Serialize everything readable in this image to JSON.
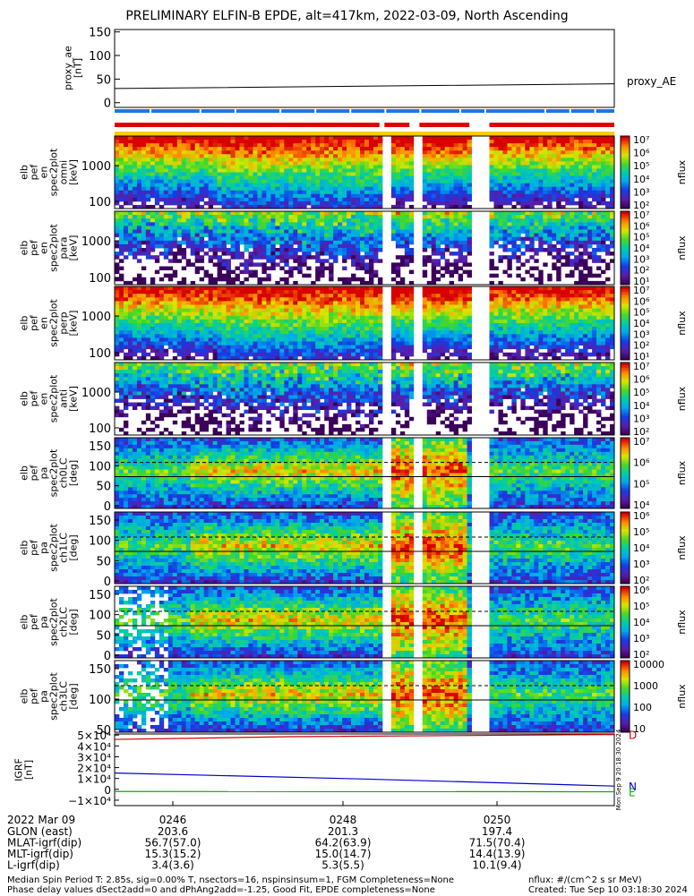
{
  "title": "PRELIMINARY ELFIN-B EPDE, alt=417km, 2022-03-09, North Ascending",
  "chart_data": [
    {
      "type": "line",
      "ylabel": "proxy_ae\n[nT]",
      "legend": "proxy_AE",
      "yticks": [
        "0",
        "50",
        "100",
        "150"
      ],
      "ylim": [
        -10,
        155
      ],
      "series": [
        {
          "name": "proxy_AE",
          "x": [
            0,
            0.5,
            1
          ],
          "values": [
            30,
            35,
            40
          ]
        }
      ]
    },
    {
      "type": "bar",
      "name": "status-bars",
      "rows": [
        {
          "color": "#1f77e0",
          "segments": [
            [
              0.0,
              1.0
            ]
          ],
          "gaps": [
            0.07,
            0.17,
            0.24,
            0.33,
            0.4,
            0.47,
            0.54,
            0.61,
            0.69,
            0.74,
            0.86,
            0.91,
            0.96
          ]
        },
        {
          "color": "#e00000",
          "segments": [
            [
              0.0,
              0.53
            ],
            [
              0.54,
              0.59
            ],
            [
              0.61,
              0.71
            ],
            [
              0.75,
              1.0
            ]
          ]
        },
        {
          "color": "#ffcc00",
          "segments": [
            [
              0.0,
              1.0
            ]
          ]
        }
      ]
    },
    {
      "type": "heatmap",
      "ylabel": "elb\npef\nen\nspec2plot\nomni\n[keV]",
      "yticks": [
        "100",
        "1000"
      ],
      "colorbar_label": "nflux",
      "colorbar_ticks": [
        "10²",
        "10³",
        "10⁴",
        "10⁵",
        "10⁶",
        "10⁷"
      ]
    },
    {
      "type": "heatmap",
      "ylabel": "elb\npef\nen\nspec2plot\npara\n[keV]",
      "yticks": [
        "100",
        "1000"
      ],
      "colorbar_label": "nflux",
      "colorbar_ticks": [
        "10¹",
        "10²",
        "10³",
        "10⁴",
        "10⁵",
        "10⁶",
        "10⁷"
      ]
    },
    {
      "type": "heatmap",
      "ylabel": "elb\npef\nen\nspec2plot\nperp\n[keV]",
      "yticks": [
        "100",
        "1000"
      ],
      "colorbar_label": "nflux",
      "colorbar_ticks": [
        "10¹",
        "10²",
        "10³",
        "10⁴",
        "10⁵",
        "10⁶",
        "10⁷"
      ]
    },
    {
      "type": "heatmap",
      "ylabel": "elb\npef\nen\nspec2plot\nanti\n[keV]",
      "yticks": [
        "100",
        "1000"
      ],
      "colorbar_label": "nflux",
      "colorbar_ticks": [
        "10²",
        "10³",
        "10⁴",
        "10⁵",
        "10⁶",
        "10⁷"
      ]
    },
    {
      "type": "heatmap",
      "ylabel": "elb\npef\npa\nspec2plot\nch0LC\n[deg]",
      "yticks": [
        "0",
        "50",
        "100",
        "150"
      ],
      "colorbar_label": "nflux",
      "colorbar_ticks": [
        "10⁴",
        "10⁵",
        "10⁶",
        "10⁷"
      ]
    },
    {
      "type": "heatmap",
      "ylabel": "elb\npef\npa\nspec2plot\nch1LC\n[deg]",
      "yticks": [
        "0",
        "50",
        "100",
        "150"
      ],
      "colorbar_label": "nflux",
      "colorbar_ticks": [
        "10²",
        "10³",
        "10⁴",
        "10⁵",
        "10⁶"
      ]
    },
    {
      "type": "heatmap",
      "ylabel": "elb\npef\npa\nspec2plot\nch2LC\n[deg]",
      "yticks": [
        "0",
        "50",
        "100",
        "150"
      ],
      "colorbar_label": "nflux",
      "colorbar_ticks": [
        "10²",
        "10³",
        "10⁴",
        "10⁵",
        "10⁶"
      ]
    },
    {
      "type": "heatmap",
      "ylabel": "elb\npef\npa\nspec2plot\nch3LC\n[deg]",
      "yticks": [
        "50",
        "100",
        "150"
      ],
      "colorbar_label": "nflux",
      "colorbar_ticks": [
        "10",
        "100",
        "1000",
        "10000"
      ]
    },
    {
      "type": "line",
      "ylabel": "IGRF\n[nT]",
      "yticks": [
        "−1×10⁴",
        "0",
        "1×10⁴",
        "2×10⁴",
        "3×10⁴",
        "4×10⁴",
        "5×10⁴"
      ],
      "ylim": [
        -15000,
        51000
      ],
      "series": [
        {
          "name": "D",
          "color": "#d00000",
          "x": [
            0,
            0.35,
            1
          ],
          "values": [
            46000,
            48500,
            50500
          ]
        },
        {
          "name": "N",
          "color": "#0000cc",
          "x": [
            0,
            0.5,
            1
          ],
          "values": [
            15000,
            9500,
            3000
          ]
        },
        {
          "name": "E",
          "color": "#00b000",
          "x": [
            0,
            1
          ],
          "values": [
            -2000,
            -2200
          ]
        }
      ]
    }
  ],
  "xaxis": {
    "date": "2022 Mar 09",
    "ticks": [
      "0246",
      "0248",
      "0250"
    ],
    "rows": [
      {
        "label": "GLON (east)",
        "values": [
          "203.6",
          "201.3",
          "197.4"
        ]
      },
      {
        "label": "MLAT-igrf(dip)",
        "values": [
          "56.7(57.0)",
          "64.2(63.9)",
          "71.5(70.4)"
        ]
      },
      {
        "label": "MLT-igrf(dip)",
        "values": [
          "15.3(15.2)",
          "15.0(14.7)",
          "14.4(13.9)"
        ]
      },
      {
        "label": "L-igrf(dip)",
        "values": [
          "3.4(3.6)",
          "5.3(5.5)",
          "10.1(9.4)"
        ]
      }
    ]
  },
  "footer": {
    "left1": "Median Spin Period T: 2.85s, sig=0.00% T, nsectors=16, nspinsinsum=1, FGM Completeness=None",
    "left2": "Phase delay values dSect2add=0 and dPhAng2add=-1.25, Good Fit, EPDE completeness=None",
    "right1": "nflux: #/(cm^2 s sr MeV)",
    "right2": "Created: Tue Sep 10 03:18:30 2024",
    "side_stamp": "Mon Sep 9 20:18:30 2024"
  }
}
